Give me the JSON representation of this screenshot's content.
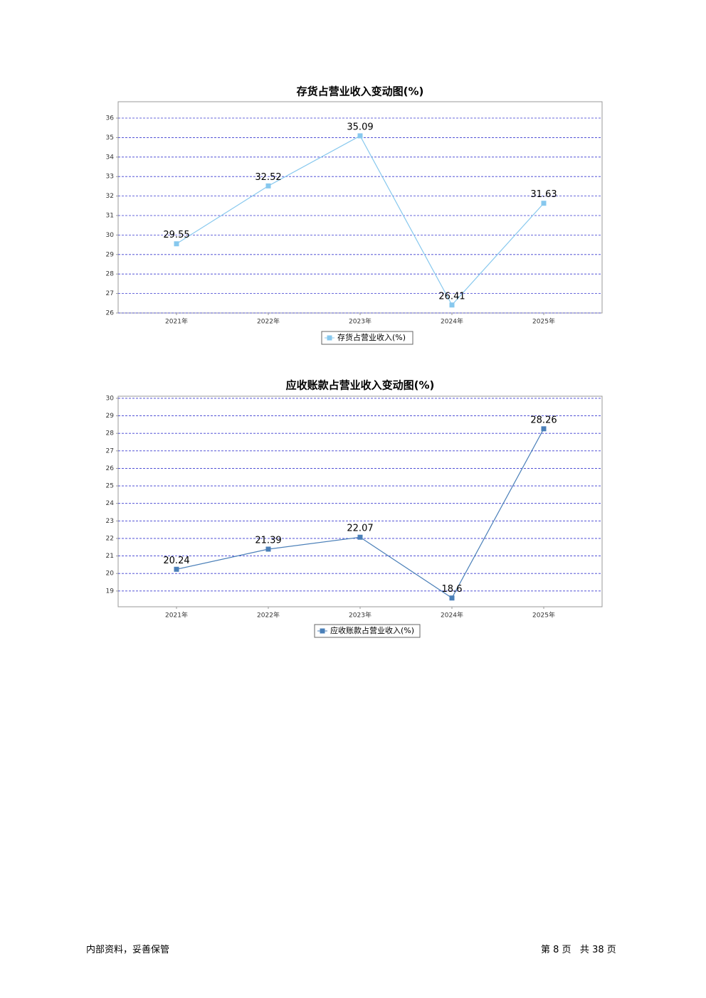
{
  "chart_data": [
    {
      "type": "line",
      "title": "存货占营业收入变动图(%)",
      "categories": [
        "2021年",
        "2022年",
        "2023年",
        "2024年",
        "2025年"
      ],
      "series": [
        {
          "name": "存货占营业收入(%)",
          "color": "#87c8ee",
          "values": [
            29.55,
            32.52,
            35.09,
            26.41,
            31.63
          ]
        }
      ],
      "ylim": [
        26,
        36.84
      ],
      "yticks": [
        26,
        27,
        28,
        29,
        30,
        31,
        32,
        33,
        34,
        35,
        36
      ],
      "grid": true
    },
    {
      "type": "line",
      "title": "应收账款占营业收入变动图(%)",
      "categories": [
        "2021年",
        "2022年",
        "2023年",
        "2024年",
        "2025年"
      ],
      "series": [
        {
          "name": "应收账款占营业收入(%)",
          "color": "#4a7fb8",
          "values": [
            20.24,
            21.39,
            22.07,
            18.6,
            28.26
          ]
        }
      ],
      "ylim": [
        18.1,
        30.12
      ],
      "yticks": [
        19,
        20,
        21,
        22,
        23,
        24,
        25,
        26,
        27,
        28,
        29,
        30
      ],
      "grid": true
    }
  ],
  "footer": {
    "left": "内部资料，妥善保管",
    "right": "第 8 页   共 38 页"
  }
}
